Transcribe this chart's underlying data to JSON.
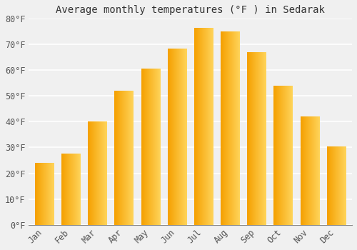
{
  "title": "Average monthly temperatures (°F ) in Sedarak",
  "months": [
    "Jan",
    "Feb",
    "Mar",
    "Apr",
    "May",
    "Jun",
    "Jul",
    "Aug",
    "Sep",
    "Oct",
    "Nov",
    "Dec"
  ],
  "values": [
    24,
    27.5,
    40,
    52,
    60.5,
    68.5,
    76.5,
    75,
    67,
    54,
    42,
    30.5
  ],
  "bar_color_left": "#F5A000",
  "bar_color_right": "#FFD45A",
  "ylim": [
    0,
    80
  ],
  "yticks": [
    0,
    10,
    20,
    30,
    40,
    50,
    60,
    70,
    80
  ],
  "ytick_labels": [
    "0°F",
    "10°F",
    "20°F",
    "30°F",
    "40°F",
    "50°F",
    "60°F",
    "70°F",
    "80°F"
  ],
  "background_color": "#f0f0f0",
  "grid_color": "#ffffff",
  "title_fontsize": 10,
  "tick_fontsize": 8.5,
  "bar_width": 0.7
}
